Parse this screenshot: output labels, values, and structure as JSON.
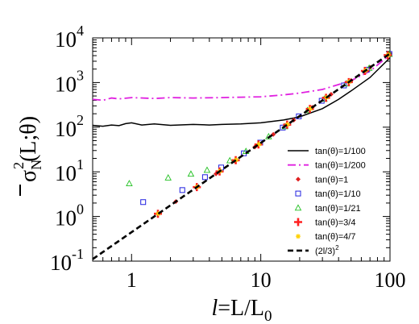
{
  "chart_data": {
    "type": "scatter",
    "title": "",
    "xlabel": {
      "italic_symbol": "l",
      "text": "=L/L",
      "subscript": "0"
    },
    "ylabel": {
      "overbar_symbol": "σ",
      "subscript": "N",
      "superscript": "2",
      "text": "(L;θ)"
    },
    "x_scale": "log",
    "y_scale": "log",
    "xlim": [
      0.5,
      100
    ],
    "ylim": [
      0.1,
      10000
    ],
    "x_ticks": [
      {
        "value": 1,
        "label": "1"
      },
      {
        "value": 10,
        "label": "10"
      },
      {
        "value": 100,
        "label": "100"
      }
    ],
    "y_ticks": [
      {
        "value": 0.1,
        "base": "10",
        "exp": "-1"
      },
      {
        "value": 1,
        "base": "10",
        "exp": "0"
      },
      {
        "value": 10,
        "base": "10",
        "exp": "1"
      },
      {
        "value": 100,
        "base": "10",
        "exp": "2"
      },
      {
        "value": 1000,
        "base": "10",
        "exp": "3"
      },
      {
        "value": 10000,
        "base": "10",
        "exp": "4"
      }
    ],
    "legend_position": "bottom-right",
    "series": [
      {
        "name": "tan(θ)=1/100",
        "kind": "line",
        "color": "#000000",
        "dash": "solid",
        "x": [
          0.5,
          0.6,
          0.7,
          0.8,
          0.9,
          1.0,
          1.2,
          1.5,
          2,
          3,
          4,
          5,
          7,
          10,
          15,
          20,
          30,
          40,
          50,
          70,
          100
        ],
        "y": [
          110,
          105,
          112,
          108,
          120,
          125,
          112,
          118,
          110,
          115,
          112,
          115,
          118,
          125,
          145,
          170,
          260,
          420,
          650,
          1300,
          3600
        ]
      },
      {
        "name": "tan(θ)=1/200",
        "kind": "line",
        "color": "#e020e0",
        "dash": "dashdot",
        "x": [
          0.5,
          0.6,
          0.7,
          0.8,
          1,
          1.5,
          2,
          3,
          5,
          7,
          10,
          15,
          20,
          30,
          40,
          50,
          70,
          100
        ],
        "y": [
          420,
          400,
          450,
          430,
          460,
          440,
          460,
          450,
          460,
          470,
          480,
          530,
          580,
          700,
          900,
          1100,
          1800,
          4200
        ]
      },
      {
        "name": "tan(θ)=1",
        "kind": "marker",
        "marker": "diamond",
        "color": "#e02020",
        "x": [
          1.6,
          2.2,
          3.2,
          4.5,
          6.3,
          9,
          12.5,
          18,
          25,
          35,
          50,
          70,
          100
        ],
        "y": [
          1.15,
          2.15,
          4.55,
          9.0,
          17.6,
          36,
          69,
          144,
          278,
          544,
          1111,
          2178,
          4444
        ]
      },
      {
        "name": "tan(θ)=1/10",
        "kind": "marker",
        "marker": "square",
        "color": "#2020e0",
        "x": [
          1.23,
          2.47,
          3.7,
          4.94,
          7.4,
          9.9,
          14.8,
          19.7,
          29.6,
          44,
          66,
          99
        ],
        "y": [
          2.1,
          3.9,
          7.6,
          12.5,
          26,
          45,
          98,
          175,
          390,
          860,
          1940,
          4360
        ]
      },
      {
        "name": "tan(θ)=1/21",
        "kind": "marker",
        "marker": "triangle",
        "color": "#20c020",
        "x": [
          0.96,
          1.92,
          2.88,
          3.84,
          5.76,
          7.68,
          11.5,
          15.4,
          23,
          31,
          46,
          69,
          99
        ],
        "y": [
          5.5,
          7.4,
          9.0,
          11,
          18,
          29,
          62,
          104,
          240,
          430,
          950,
          2120,
          4360
        ]
      },
      {
        "name": "tan(θ)=3/4",
        "kind": "marker",
        "marker": "plus",
        "color": "#ff2020",
        "x": [
          1.6,
          3.2,
          4.8,
          6.4,
          9.6,
          16,
          24,
          32,
          48,
          64,
          96
        ],
        "y": [
          1.15,
          4.55,
          10.2,
          18.2,
          41,
          114,
          256,
          455,
          1024,
          1820,
          4096
        ]
      },
      {
        "name": "tan(θ)=4/7",
        "kind": "marker",
        "marker": "star",
        "color": "#ffd000",
        "x": [
          1.61,
          3.22,
          4.84,
          6.45,
          9.7,
          16.1,
          24.2,
          32.3,
          48.4,
          64.5,
          96.8
        ],
        "y": [
          1.16,
          4.6,
          10.4,
          18.5,
          41.7,
          115,
          260,
          463,
          1041,
          1850,
          4163
        ]
      },
      {
        "name": "(2l/3)²",
        "kind": "line",
        "color": "#000000",
        "dash": "dashed",
        "formula": "y = (2x/3)^2",
        "x": [
          0.5,
          1,
          2,
          5,
          10,
          20,
          50,
          100
        ],
        "y": [
          0.111,
          0.444,
          1.778,
          11.11,
          44.44,
          177.8,
          1111,
          4444
        ]
      }
    ],
    "legend": [
      {
        "label": "tan(θ)=1/100"
      },
      {
        "label": "tan(θ)=1/200"
      },
      {
        "label": "tan(θ)=1"
      },
      {
        "label": "tan(θ)=1/10"
      },
      {
        "label": "tan(θ)=1/21"
      },
      {
        "label": "tan(θ)=3/4"
      },
      {
        "label": "tan(θ)=4/7"
      },
      {
        "label": "(2l/3)",
        "sup": "2"
      }
    ]
  }
}
